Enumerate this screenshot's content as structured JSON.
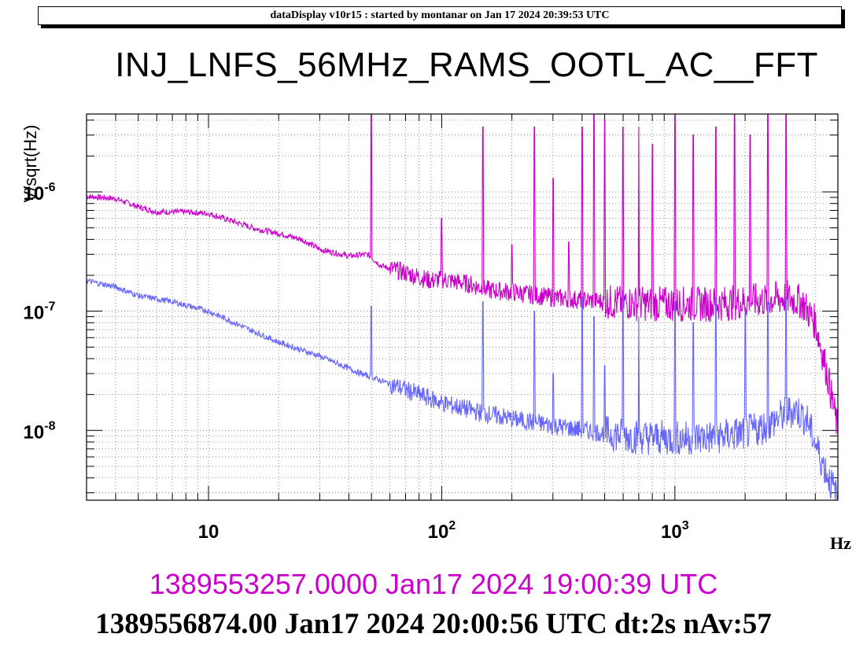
{
  "banner": "dataDisplay v10r15 : started by montanar on Jan 17 2024 20:39:53 UTC",
  "timestamps": {
    "series1": "1389553257.0000 Jan17 2024 19:00:39 UTC",
    "series2": "1389556874.00 Jan17 2024 20:00:56 UTC dt:2s nAv:57"
  },
  "chart_data": {
    "type": "line",
    "title": "INJ_LNFS_56MHz_RAMS_OOTL_AC__FFT",
    "xlabel": "Hz",
    "ylabel": "V/sqrt(Hz)",
    "xscale": "log",
    "yscale": "log",
    "xlim": [
      3,
      5000
    ],
    "ylim": [
      2.6e-09,
      4.5e-06
    ],
    "grid": true,
    "x_ticks": [
      {
        "value": 10,
        "base": "10",
        "exp": ""
      },
      {
        "value": 100,
        "base": "10",
        "exp": "2"
      },
      {
        "value": 1000,
        "base": "10",
        "exp": "3"
      }
    ],
    "y_ticks": [
      {
        "value": 1e-08,
        "base": "10",
        "exp": "-8"
      },
      {
        "value": 1e-07,
        "base": "10",
        "exp": "-7"
      },
      {
        "value": 1e-06,
        "base": "10",
        "exp": "-6"
      }
    ],
    "series": [
      {
        "color": "#cc00cc",
        "points": [
          [
            3,
            9.2e-07
          ],
          [
            4,
            8.8e-07
          ],
          [
            5,
            7.5e-07
          ],
          [
            6,
            6.8e-07
          ],
          [
            8,
            6.8e-07
          ],
          [
            10,
            6.6e-07
          ],
          [
            13,
            5.6e-07
          ],
          [
            16,
            4.9e-07
          ],
          [
            20,
            4.5e-07
          ],
          [
            25,
            4e-07
          ],
          [
            30,
            3.3e-07
          ],
          [
            40,
            2.9e-07
          ],
          [
            48,
            3e-07
          ],
          [
            55,
            2.4e-07
          ],
          [
            70,
            2.1e-07
          ],
          [
            90,
            1.8e-07
          ],
          [
            100,
            1.85e-07
          ],
          [
            130,
            1.7e-07
          ],
          [
            160,
            1.5e-07
          ],
          [
            200,
            1.45e-07
          ],
          [
            300,
            1.3e-07
          ],
          [
            500,
            1.2e-07
          ],
          [
            800,
            1.15e-07
          ],
          [
            1000,
            1.15e-07
          ],
          [
            1500,
            1.15e-07
          ],
          [
            2000,
            1.2e-07
          ],
          [
            2500,
            1.25e-07
          ],
          [
            3000,
            1.3e-07
          ],
          [
            3500,
            1.2e-07
          ],
          [
            4000,
            8e-08
          ],
          [
            4500,
            3e-08
          ],
          [
            5000,
            1e-08
          ]
        ],
        "peaks": [
          [
            50,
            4.5e-06
          ],
          [
            100,
            6e-07
          ],
          [
            150,
            3.5e-06
          ],
          [
            200,
            3.6e-07
          ],
          [
            250,
            3.5e-06
          ],
          [
            300,
            1.3e-06
          ],
          [
            350,
            3.8e-07
          ],
          [
            400,
            3.5e-06
          ],
          [
            450,
            4.5e-06
          ],
          [
            500,
            4e-06
          ],
          [
            600,
            3.5e-06
          ],
          [
            700,
            3.5e-06
          ],
          [
            800,
            2.5e-06
          ],
          [
            1000,
            4.5e-06
          ],
          [
            1200,
            3e-06
          ],
          [
            1500,
            3.5e-06
          ],
          [
            1800,
            4.5e-06
          ],
          [
            2100,
            3e-06
          ],
          [
            2500,
            4.5e-06
          ],
          [
            3000,
            4.5e-06
          ]
        ]
      },
      {
        "color": "#6666ff",
        "points": [
          [
            3,
            1.8e-07
          ],
          [
            4,
            1.6e-07
          ],
          [
            5,
            1.35e-07
          ],
          [
            7,
            1.2e-07
          ],
          [
            10,
            1e-07
          ],
          [
            15,
            7e-08
          ],
          [
            20,
            5.5e-08
          ],
          [
            30,
            4.2e-08
          ],
          [
            45,
            3e-08
          ],
          [
            50,
            2.8e-08
          ],
          [
            70,
            2.2e-08
          ],
          [
            100,
            1.7e-08
          ],
          [
            150,
            1.4e-08
          ],
          [
            200,
            1.25e-08
          ],
          [
            300,
            1.1e-08
          ],
          [
            500,
            9.5e-09
          ],
          [
            700,
            8.8e-09
          ],
          [
            1000,
            8.6e-09
          ],
          [
            1500,
            8.8e-09
          ],
          [
            2000,
            9.5e-09
          ],
          [
            2500,
            1.1e-08
          ],
          [
            3000,
            1.4e-08
          ],
          [
            3300,
            1.5e-08
          ],
          [
            3700,
            1.2e-08
          ],
          [
            4200,
            6e-09
          ],
          [
            5000,
            2.6e-09
          ]
        ],
        "peaks": [
          [
            50,
            1.1e-07
          ],
          [
            150,
            1.2e-07
          ],
          [
            250,
            1e-07
          ],
          [
            300,
            3e-08
          ],
          [
            400,
            1.3e-07
          ],
          [
            450,
            9e-08
          ],
          [
            500,
            3.5e-08
          ],
          [
            600,
            1.5e-07
          ],
          [
            700,
            9e-08
          ],
          [
            1000,
            1.2e-07
          ],
          [
            1200,
            8e-08
          ],
          [
            1500,
            1.3e-07
          ],
          [
            2000,
            1e-07
          ],
          [
            2500,
            1.2e-07
          ],
          [
            3000,
            1.3e-07
          ]
        ]
      }
    ]
  }
}
